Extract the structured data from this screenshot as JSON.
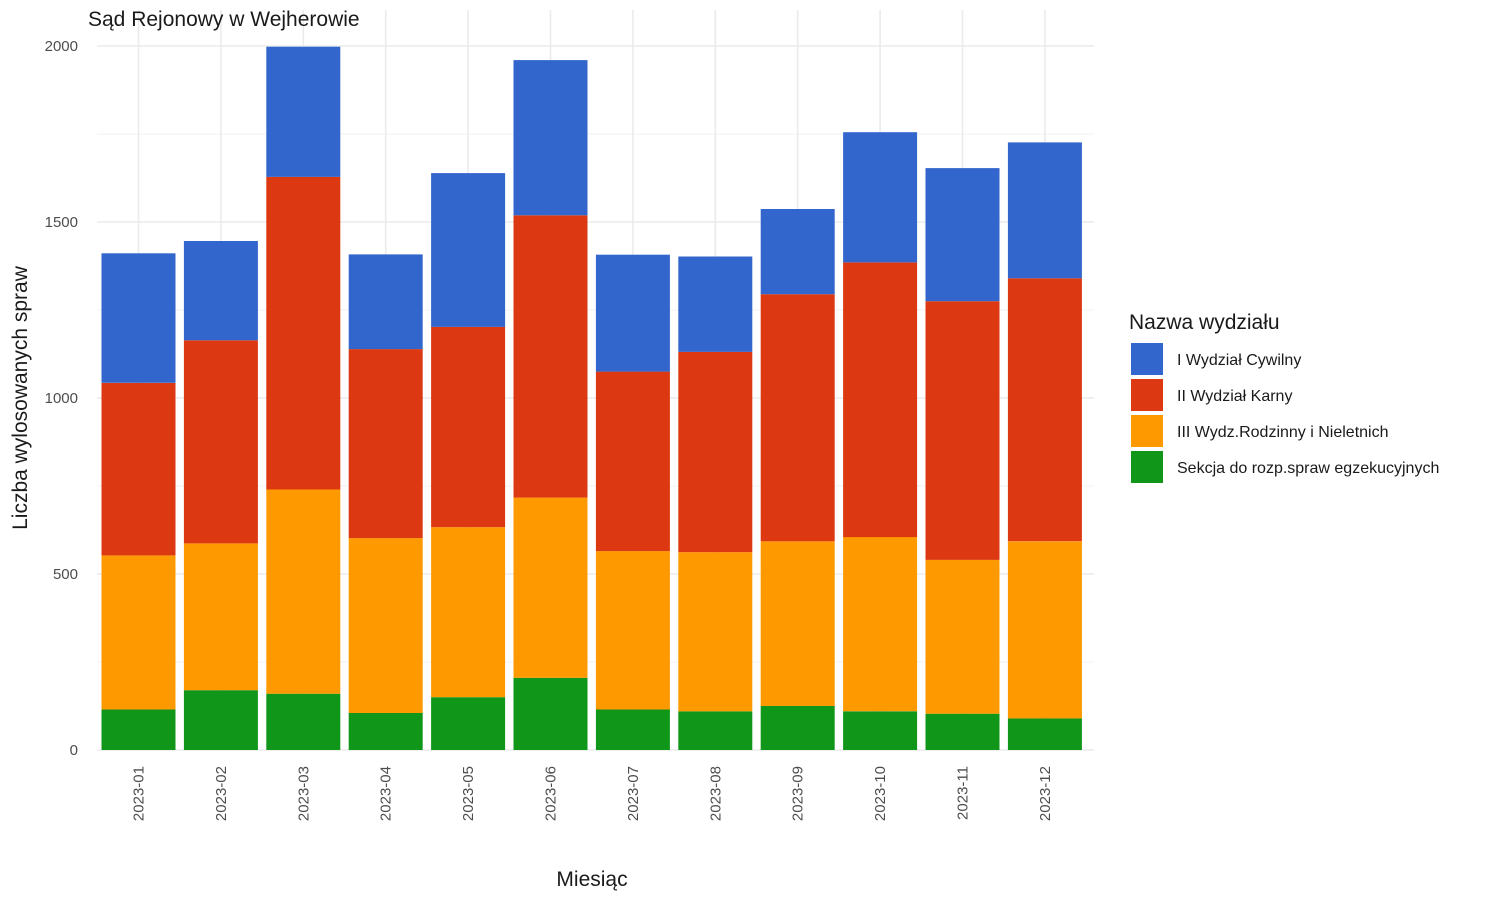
{
  "chart_data": {
    "type": "bar",
    "stacked": true,
    "title": "Sąd Rejonowy w Wejherowie",
    "xlabel": "Miesiąc",
    "ylabel": "Liczba wylosowanych spraw",
    "ylim": [
      0,
      2000
    ],
    "yticks": [
      0,
      500,
      1000,
      1500,
      2000
    ],
    "grid": true,
    "legend_title": "Nazwa wydziału",
    "legend_position": "right",
    "categories": [
      "2023-01",
      "2023-02",
      "2023-03",
      "2023-04",
      "2023-05",
      "2023-06",
      "2023-07",
      "2023-08",
      "2023-09",
      "2023-10",
      "2023-11",
      "2023-12"
    ],
    "series": [
      {
        "name": "Sekcja do rozp.spraw egzekucyjnych",
        "color": "#109618",
        "values": [
          115,
          170,
          160,
          105,
          150,
          205,
          115,
          110,
          125,
          110,
          103,
          90
        ]
      },
      {
        "name": "III Wydz.Rodzinny i Nieletnich",
        "color": "#FF9900",
        "values": [
          438,
          417,
          580,
          497,
          483,
          512,
          450,
          452,
          468,
          495,
          437,
          503
        ]
      },
      {
        "name": "II Wydział Karny",
        "color": "#DC3912",
        "values": [
          490,
          577,
          888,
          537,
          569,
          802,
          510,
          569,
          702,
          780,
          735,
          747
        ]
      },
      {
        "name": "I Wydział Cywilny",
        "color": "#3366CC",
        "values": [
          368,
          282,
          370,
          269,
          437,
          441,
          332,
          271,
          242,
          370,
          378,
          386
        ]
      }
    ],
    "legend_order": [
      "I Wydział Cywilny",
      "II Wydział Karny",
      "III Wydz.Rodzinny i Nieletnich",
      "Sekcja do rozp.spraw egzekucyjnych"
    ]
  }
}
